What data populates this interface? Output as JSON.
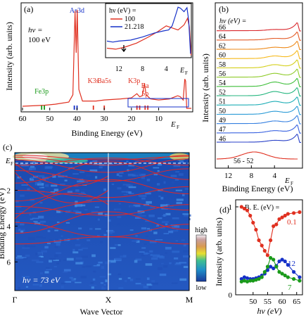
{
  "chart_data": [
    {
      "panel_label": "(a)",
      "type": "line",
      "xlabel": "Binding Energy (eV)",
      "ylabel": "Intensity (arb. units)",
      "xlim": [
        60,
        -2
      ],
      "x_ticks": [
        "60",
        "50",
        "40",
        "30",
        "20",
        "10"
      ],
      "ef_label": "E",
      "ef_sub": "F",
      "photon_label": "hν =",
      "photon_value": "100 eV",
      "series": [
        {
          "color": "#e03020",
          "points": [
            [
              60,
              0.04
            ],
            [
              52,
              0.05
            ],
            [
              48,
              0.06
            ],
            [
              43,
              0.08
            ],
            [
              41.5,
              0.15
            ],
            [
              40.7,
              0.95
            ],
            [
              40.3,
              0.55
            ],
            [
              39.9,
              0.96
            ],
            [
              39.3,
              0.2
            ],
            [
              38,
              0.09
            ],
            [
              33,
              0.09
            ],
            [
              30,
              0.1
            ],
            [
              24,
              0.11
            ],
            [
              20,
              0.12
            ],
            [
              18,
              0.16
            ],
            [
              17,
              0.13
            ],
            [
              16,
              0.14
            ],
            [
              15.2,
              0.26
            ],
            [
              14.6,
              0.15
            ],
            [
              13,
              0.11
            ],
            [
              10,
              0.1
            ],
            [
              6,
              0.11
            ],
            [
              4,
              0.13
            ],
            [
              3,
              0.14
            ],
            [
              2,
              0.13
            ],
            [
              1,
              0.1
            ],
            [
              0.4,
              0.3
            ],
            [
              0.1,
              0.28
            ],
            [
              -0.3,
              0.02
            ],
            [
              -2,
              0.02
            ]
          ]
        }
      ],
      "annotations": [
        {
          "text": "As3d",
          "x": 40,
          "color": "#1530c8"
        },
        {
          "text": "Fe3p",
          "x": 53,
          "color": "#1a9a1a"
        },
        {
          "text": "K3s",
          "x": 34,
          "color": "#e03020"
        },
        {
          "text": "Ba5s",
          "x": 30,
          "color": "#e03020"
        },
        {
          "text": "K3p",
          "x": 18,
          "color": "#e03020"
        },
        {
          "text": "Ba",
          "x": 15,
          "color": "#e03020"
        },
        {
          "text": "5p",
          "x": 15,
          "color": "#e03020"
        }
      ],
      "markers": [
        {
          "x": 53,
          "color": "#1a9a1a"
        },
        {
          "x": 52,
          "color": "#1a9a1a"
        },
        {
          "x": 41,
          "color": "#1530c8"
        },
        {
          "x": 40,
          "color": "#1530c8"
        },
        {
          "x": 34,
          "color": "#e03020"
        },
        {
          "x": 30,
          "color": "#e03020"
        },
        {
          "x": 18,
          "color": "#e03020"
        },
        {
          "x": 17,
          "color": "#e03020"
        },
        {
          "x": 15,
          "color": "#e03020"
        },
        {
          "x": 14,
          "color": "#e03020"
        }
      ],
      "inset": {
        "type": "line",
        "xlim": [
          14,
          0
        ],
        "x_ticks": [
          "12",
          "8",
          "4"
        ],
        "legend_title": "hν (eV) =",
        "series": [
          {
            "name": "100",
            "color": "#e03020",
            "points": [
              [
                14,
                0.16
              ],
              [
                12.5,
                0.14
              ],
              [
                11,
                0.18
              ],
              [
                9,
                0.26
              ],
              [
                7,
                0.38
              ],
              [
                5.5,
                0.48
              ],
              [
                4,
                0.6
              ],
              [
                3,
                0.56
              ],
              [
                2,
                0.52
              ],
              [
                1,
                0.62
              ],
              [
                0.4,
                0.75
              ],
              [
                0.1,
                0.58
              ],
              [
                -0.2,
                0.02
              ]
            ]
          },
          {
            "name": "21.218",
            "color": "#1530c8",
            "points": [
              [
                14,
                0.3
              ],
              [
                13,
                0.28
              ],
              [
                12,
                0.3
              ],
              [
                10,
                0.32
              ],
              [
                8,
                0.38
              ],
              [
                6,
                0.46
              ],
              [
                4.5,
                0.5
              ],
              [
                3.6,
                0.52
              ],
              [
                3,
                0.6
              ],
              [
                2.4,
                0.82
              ],
              [
                2,
                0.97
              ],
              [
                1.6,
                0.95
              ],
              [
                1,
                0.88
              ],
              [
                0.5,
                0.96
              ],
              [
                0.2,
                0.7
              ],
              [
                -0.1,
                0.05
              ]
            ]
          }
        ]
      }
    },
    {
      "panel_label": "(b)",
      "type": "line",
      "xlabel": "Binding Energy (eV)",
      "ylabel": "Intensity (arb. units)",
      "xlim": [
        14,
        -0.6
      ],
      "x_ticks": [
        "12",
        "8",
        "4"
      ],
      "legend_title": "hν (eV) =",
      "series_labels": [
        "66",
        "64",
        "62",
        "60",
        "58",
        "56",
        "54",
        "52",
        "51",
        "50",
        "49",
        "47",
        "46"
      ],
      "series_colors": [
        "#d9262b",
        "#e35b27",
        "#ee8a1a",
        "#f6b91b",
        "#d4cf1a",
        "#8fcb2a",
        "#3fbf3a",
        "#25b67f",
        "#1eaeb6",
        "#2b9bd6",
        "#347fe0",
        "#3a63e0",
        "#2a42c8"
      ],
      "shoulder_values": [
        0.1,
        0.14,
        0.18,
        0.24,
        0.3,
        0.36,
        0.42,
        0.4,
        0.34,
        0.28,
        0.24,
        0.2,
        0.16
      ],
      "difference_label": "56 - 52"
    },
    {
      "panel_label": "(c)",
      "type": "heatmap",
      "xlabel": "Wave Vector",
      "ylabel": "Binding Energy (eV)",
      "x_ticks": [
        "Γ",
        "X",
        "M"
      ],
      "y_ticks": [
        "2",
        "4",
        "6"
      ],
      "ylim": [
        -0.1,
        7.6
      ],
      "ef_label": "E",
      "ef_sub": "F",
      "colorbar": {
        "high": "high",
        "low": "low"
      },
      "photon_label": "hν = 73 eV"
    },
    {
      "panel_label": "(d)",
      "type": "line",
      "xlabel": "hν (eV)",
      "ylabel": "Intensity (arb. units)",
      "xlim": [
        44,
        67
      ],
      "ylim": [
        0,
        1.08
      ],
      "x_ticks": [
        50,
        55,
        60,
        65
      ],
      "y_ticks": [
        0,
        1
      ],
      "legend_title": "B. E. (eV) =",
      "series": [
        {
          "name": "0.1",
          "color": "#e03020",
          "x": [
            46,
            47,
            48,
            49,
            50,
            51,
            52,
            53,
            54,
            55,
            56,
            57,
            58,
            59,
            60,
            61,
            62,
            64,
            66
          ],
          "y": [
            1.0,
            0.98,
            0.96,
            0.9,
            0.82,
            0.74,
            0.62,
            0.56,
            0.5,
            0.45,
            0.62,
            0.78,
            0.8,
            0.86,
            0.88,
            0.9,
            0.92,
            0.93,
            0.94
          ]
        },
        {
          "name": "12",
          "color": "#1530c8",
          "x": [
            46,
            47,
            48,
            49,
            50,
            51,
            52,
            53,
            54,
            55,
            56,
            57,
            58,
            59,
            60,
            61,
            62,
            64,
            66
          ],
          "y": [
            0.18,
            0.2,
            0.19,
            0.18,
            0.18,
            0.19,
            0.2,
            0.22,
            0.24,
            0.28,
            0.32,
            0.3,
            0.33,
            0.38,
            0.4,
            0.38,
            0.34,
            0.26,
            0.2
          ]
        },
        {
          "name": "7",
          "color": "#1a9a1a",
          "x": [
            46,
            47,
            48,
            49,
            50,
            51,
            52,
            53,
            54,
            55,
            56,
            57,
            58,
            59,
            60,
            61,
            62,
            64,
            66
          ],
          "y": [
            0.15,
            0.16,
            0.15,
            0.16,
            0.16,
            0.17,
            0.18,
            0.2,
            0.26,
            0.32,
            0.42,
            0.4,
            0.32,
            0.26,
            0.24,
            0.22,
            0.2,
            0.18,
            0.16
          ]
        }
      ]
    }
  ]
}
